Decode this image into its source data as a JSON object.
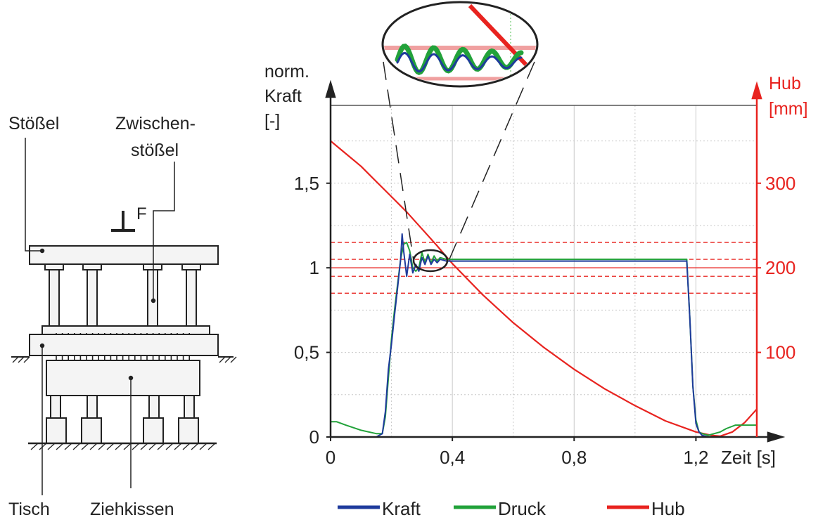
{
  "diagram": {
    "labels": {
      "ram": "Stößel",
      "intermediate_ram_1": "Zwischen-",
      "intermediate_ram_2": "stößel",
      "force": "F",
      "table": "Tisch",
      "cushion": "Ziehkissen"
    }
  },
  "chart_data": {
    "type": "line",
    "y_left_label_lines": [
      "norm.",
      "Kraft",
      "[-]"
    ],
    "y_right_label_lines": [
      "Hub",
      "[mm]"
    ],
    "x_axis_label": "Zeit [s]",
    "x_ticks": [
      {
        "value": 0,
        "label": "0"
      },
      {
        "value": 0.4,
        "label": "0,4"
      },
      {
        "value": 0.8,
        "label": "0,8"
      },
      {
        "value": 1.2,
        "label": "1,2"
      }
    ],
    "y_left_ticks": [
      {
        "value": 0,
        "label": "0"
      },
      {
        "value": 0.5,
        "label": "0,5"
      },
      {
        "value": 1,
        "label": "1"
      },
      {
        "value": 1.5,
        "label": "1,5"
      }
    ],
    "y_right_ticks": [
      {
        "value": 100,
        "label": "100"
      },
      {
        "value": 200,
        "label": "200"
      },
      {
        "value": 300,
        "label": "300"
      }
    ],
    "x_range": [
      0,
      1.4
    ],
    "y_left_range": [
      0,
      1.96
    ],
    "y_right_range": [
      0,
      392
    ],
    "grid": true,
    "reference_lines": [
      {
        "value": 1.0,
        "style": "solid"
      },
      {
        "value": 1.05,
        "style": "dashed"
      },
      {
        "value": 0.95,
        "style": "dashed"
      },
      {
        "value": 1.15,
        "style": "dashed"
      },
      {
        "value": 0.85,
        "style": "dashed"
      }
    ],
    "series": [
      {
        "name": "Hub",
        "axis": "right",
        "color": "#e8231f",
        "x": [
          0,
          0.05,
          0.1,
          0.15,
          0.2,
          0.25,
          0.3,
          0.35,
          0.4,
          0.5,
          0.6,
          0.7,
          0.8,
          0.9,
          1.0,
          1.1,
          1.2,
          1.25,
          1.28,
          1.32,
          1.36,
          1.4
        ],
        "y": [
          350,
          335,
          320,
          302,
          284,
          266,
          246,
          226,
          205,
          168,
          135,
          106,
          80,
          57,
          37,
          19,
          6,
          2,
          1,
          6,
          17,
          33
        ]
      },
      {
        "name": "Druck",
        "axis": "left",
        "color": "#22a23a",
        "x": [
          0,
          0.02,
          0.05,
          0.1,
          0.15,
          0.17,
          0.18,
          0.19,
          0.2,
          0.21,
          0.22,
          0.23,
          0.24,
          0.25,
          0.26,
          0.27,
          0.28,
          0.29,
          0.3,
          0.31,
          0.32,
          0.33,
          0.34,
          0.35,
          0.36,
          0.38,
          0.4,
          0.5,
          0.7,
          0.9,
          1.1,
          1.17,
          1.18,
          1.19,
          1.2,
          1.21,
          1.22,
          1.24,
          1.26,
          1.28,
          1.3,
          1.33,
          1.36,
          1.4
        ],
        "y": [
          0.09,
          0.09,
          0.07,
          0.04,
          0.02,
          0.02,
          0.12,
          0.35,
          0.58,
          0.75,
          0.9,
          1.05,
          1.14,
          1.15,
          1.1,
          1.0,
          0.98,
          1.0,
          1.09,
          1.03,
          1.08,
          1.03,
          1.07,
          1.04,
          1.06,
          1.05,
          1.05,
          1.05,
          1.05,
          1.05,
          1.05,
          1.05,
          0.7,
          0.3,
          0.1,
          0.03,
          0.02,
          0.01,
          0.02,
          0.03,
          0.05,
          0.07,
          0.07,
          0.07
        ]
      },
      {
        "name": "Kraft",
        "axis": "left",
        "color": "#1f3b9c",
        "x": [
          0,
          0.1,
          0.15,
          0.17,
          0.18,
          0.19,
          0.2,
          0.21,
          0.22,
          0.23,
          0.235,
          0.24,
          0.25,
          0.26,
          0.27,
          0.28,
          0.29,
          0.3,
          0.31,
          0.32,
          0.33,
          0.34,
          0.35,
          0.36,
          0.38,
          0.4,
          0.5,
          0.7,
          0.9,
          1.1,
          1.17,
          1.18,
          1.19,
          1.2,
          1.21,
          1.22,
          1.24,
          1.26,
          1.28,
          1.3,
          1.35,
          1.4
        ],
        "y": [
          0.0,
          0.0,
          0.0,
          0.02,
          0.15,
          0.4,
          0.55,
          0.72,
          0.88,
          1.05,
          1.2,
          1.1,
          0.95,
          1.08,
          0.97,
          1.02,
          0.98,
          1.06,
          1.02,
          1.07,
          1.02,
          1.05,
          1.03,
          1.05,
          1.04,
          1.04,
          1.04,
          1.04,
          1.04,
          1.04,
          1.04,
          0.7,
          0.3,
          0.08,
          0.03,
          0.01,
          0.0,
          0.0,
          0.0,
          0.0,
          0.0,
          0.0
        ]
      }
    ],
    "legend_position": "bottom"
  }
}
